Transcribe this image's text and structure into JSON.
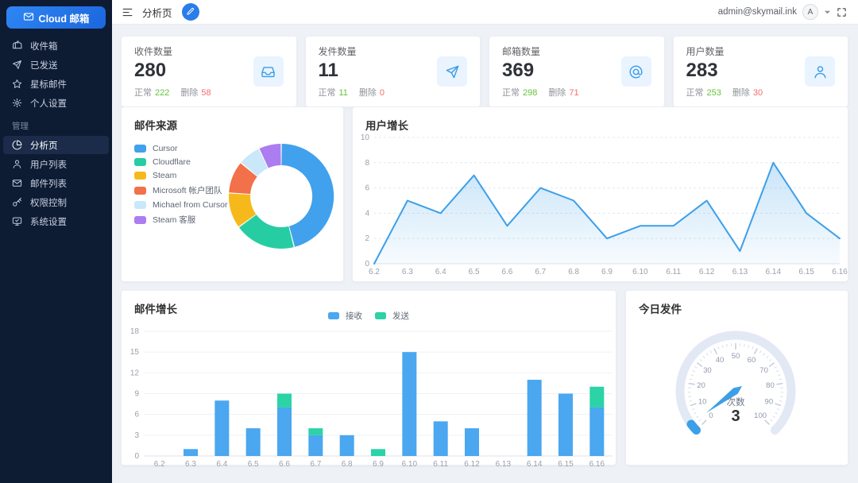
{
  "topbar": {
    "page_title": "分析页",
    "user_email": "admin@skymail.ink",
    "avatar_letter": "A"
  },
  "sidebar": {
    "logo_text": "Cloud 邮箱",
    "group_label": "管理",
    "main_items": [
      {
        "id": "inbox",
        "icon": "mailbox-icon",
        "label": "收件箱"
      },
      {
        "id": "sent",
        "icon": "send-icon",
        "label": "已发送"
      },
      {
        "id": "starred",
        "icon": "star-icon",
        "label": "星标邮件"
      },
      {
        "id": "profile-settings",
        "icon": "gear-icon",
        "label": "个人设置"
      }
    ],
    "admin_items": [
      {
        "id": "analytics",
        "icon": "pie-chart-icon",
        "label": "分析页",
        "active": true
      },
      {
        "id": "users",
        "icon": "user-icon",
        "label": "用户列表"
      },
      {
        "id": "mail-list",
        "icon": "mail-icon",
        "label": "邮件列表"
      },
      {
        "id": "permissions",
        "icon": "key-icon",
        "label": "权限控制"
      },
      {
        "id": "system-settings",
        "icon": "monitor-icon",
        "label": "系统设置"
      }
    ]
  },
  "stats": {
    "normal_label": "正常",
    "deleted_label": "删除",
    "cards": [
      {
        "id": "received",
        "title": "收件数量",
        "value": "280",
        "normal": "222",
        "deleted": "58",
        "icon": "inbox-tray-icon"
      },
      {
        "id": "sent",
        "title": "发件数量",
        "value": "11",
        "normal": "11",
        "deleted": "0",
        "icon": "paper-plane-icon"
      },
      {
        "id": "mailboxes",
        "title": "邮箱数量",
        "value": "369",
        "normal": "298",
        "deleted": "71",
        "icon": "at-icon"
      },
      {
        "id": "users",
        "title": "用户数量",
        "value": "283",
        "normal": "253",
        "deleted": "30",
        "icon": "person-icon"
      }
    ]
  },
  "chart_data": [
    {
      "id": "mail-sources",
      "type": "pie",
      "title": "邮件来源",
      "legend_position": "left",
      "slices": [
        {
          "label": "Cursor",
          "value": 46,
          "color": "#41a1ec"
        },
        {
          "label": "Cloudflare",
          "value": 19,
          "color": "#27cda2"
        },
        {
          "label": "Steam",
          "value": 11,
          "color": "#f6b91c"
        },
        {
          "label": "Microsoft 帐户团队",
          "value": 10,
          "color": "#f2704a"
        },
        {
          "label": "Michael from Cursor",
          "value": 7,
          "color": "#c9e8f9"
        },
        {
          "label": "Steam 客服",
          "value": 7,
          "color": "#ab7df0"
        }
      ]
    },
    {
      "id": "user-growth",
      "type": "area",
      "title": "用户增长",
      "x": [
        "6.2",
        "6.3",
        "6.4",
        "6.5",
        "6.6",
        "6.7",
        "6.8",
        "6.9",
        "6.10",
        "6.11",
        "6.12",
        "6.13",
        "6.14",
        "6.15",
        "6.16"
      ],
      "values": [
        0,
        5,
        4,
        7,
        3,
        6,
        5,
        2,
        3,
        3,
        5,
        1,
        8,
        4,
        2
      ],
      "ylim": [
        0,
        10
      ],
      "yticks": [
        0,
        2,
        4,
        6,
        8,
        10
      ],
      "line_color": "#3d9fe8",
      "grid": "dashed"
    },
    {
      "id": "mail-growth",
      "type": "bar",
      "title": "邮件增长",
      "stacked": true,
      "x": [
        "6.2",
        "6.3",
        "6.4",
        "6.5",
        "6.6",
        "6.7",
        "6.8",
        "6.9",
        "6.10",
        "6.11",
        "6.12",
        "6.13",
        "6.14",
        "6.15",
        "6.16"
      ],
      "series": [
        {
          "name": "接收",
          "color": "#4aa7f0",
          "values": [
            0,
            1,
            8,
            4,
            7,
            3,
            3,
            0,
            15,
            5,
            4,
            0,
            11,
            9,
            7
          ]
        },
        {
          "name": "发送",
          "color": "#2bd3a7",
          "values": [
            0,
            0,
            0,
            0,
            2,
            1,
            0,
            1,
            0,
            0,
            0,
            0,
            0,
            0,
            3
          ]
        }
      ],
      "ylim": [
        0,
        18
      ],
      "yticks": [
        0,
        3,
        6,
        9,
        12,
        15,
        18
      ],
      "legend_position": "top"
    },
    {
      "id": "today-sent",
      "type": "gauge",
      "title": "今日发件",
      "label": "次数",
      "value": 3,
      "min": 0,
      "max": 100,
      "tick_step": 10,
      "needle_color": "#3d9fe8",
      "track_color": "#e3e8f5"
    }
  ]
}
